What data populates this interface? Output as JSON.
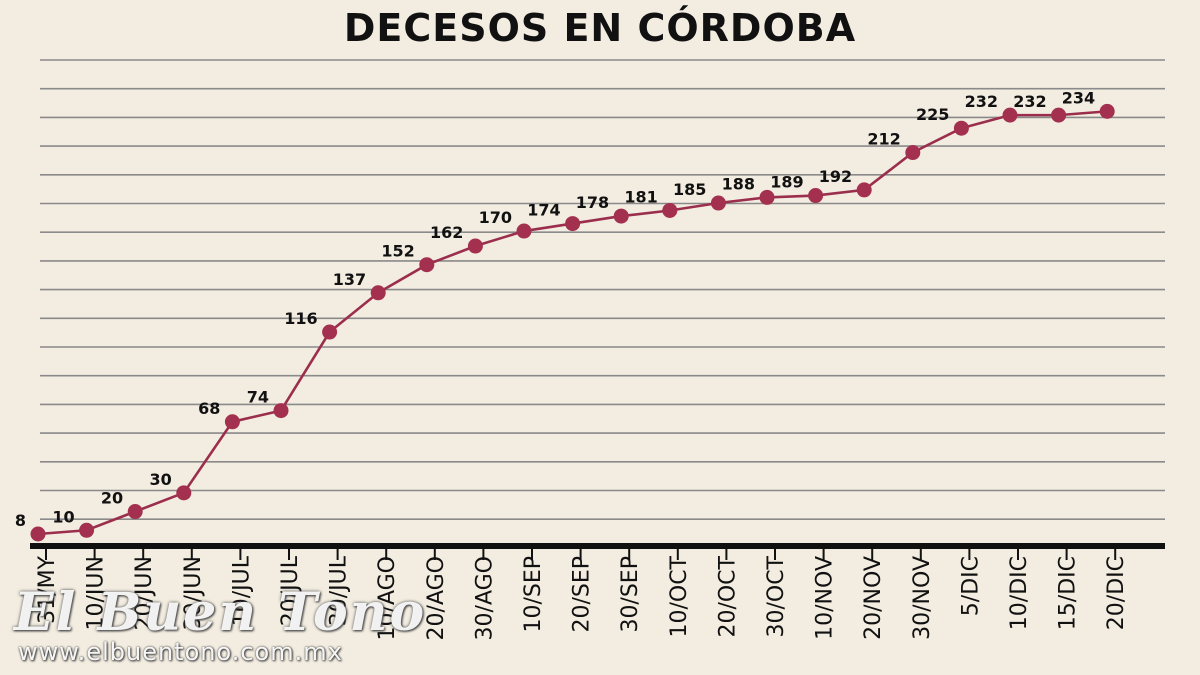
{
  "chart_data": {
    "type": "line",
    "title": "DECESOS EN CÓRDOBA",
    "categories": [
      "31/MY",
      "10/JUN",
      "20/JUN",
      "30/JUN",
      "10/JUL",
      "20/JUL",
      "30/JUL",
      "10/AGO",
      "20/AGO",
      "30/AGO",
      "10/SEP",
      "20/SEP",
      "30/SEP",
      "10/OCT",
      "20/OCT",
      "30/OCT",
      "10/NOV",
      "20/NOV",
      "30/NOV",
      "5/DIC",
      "10/DIC",
      "15/DIC",
      "20/DIC"
    ],
    "values": [
      8,
      10,
      20,
      30,
      68,
      74,
      116,
      137,
      152,
      162,
      170,
      174,
      178,
      181,
      185,
      188,
      189,
      192,
      212,
      225,
      232,
      232,
      234
    ],
    "value_labels": [
      "8",
      "10",
      "20",
      "30",
      "68",
      "74",
      "116",
      "137",
      "152",
      "162",
      "170",
      "174",
      "178",
      "181",
      "185",
      "188",
      "189",
      "192",
      "212",
      "225",
      "232",
      "232",
      "234"
    ],
    "xlabel": "",
    "ylabel": "",
    "grid": true,
    "legend": "none",
    "colors": {
      "line": "#9b2e4d",
      "marker": "#a3304f",
      "grid": "#8a8a8a",
      "baseline": "#111111",
      "background": "#f3ede1"
    }
  },
  "watermark": {
    "logo_text": "El Buen Tono",
    "url": "www.elbuentono.com.mx"
  }
}
